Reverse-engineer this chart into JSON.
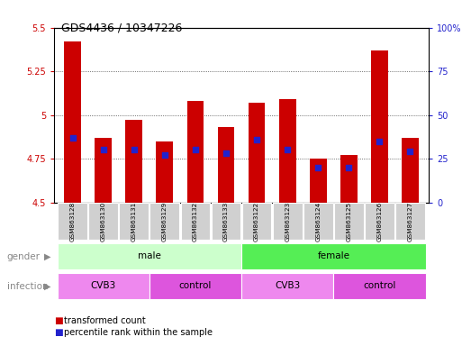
{
  "title": "GDS4436 / 10347226",
  "samples": [
    "GSM863128",
    "GSM863130",
    "GSM863131",
    "GSM863129",
    "GSM863132",
    "GSM863133",
    "GSM863122",
    "GSM863123",
    "GSM863124",
    "GSM863125",
    "GSM863126",
    "GSM863127"
  ],
  "red_values": [
    5.42,
    4.87,
    4.97,
    4.85,
    5.08,
    4.93,
    5.07,
    5.09,
    4.75,
    4.77,
    5.37,
    4.87
  ],
  "blue_values_pct": [
    37,
    30,
    30,
    27,
    30,
    28,
    36,
    30,
    20,
    20,
    35,
    29
  ],
  "ylim_left": [
    4.5,
    5.5
  ],
  "ylim_right": [
    0,
    100
  ],
  "yticks_left": [
    4.5,
    4.75,
    5.0,
    5.25,
    5.5
  ],
  "yticks_right": [
    0,
    25,
    50,
    75,
    100
  ],
  "ytick_labels_left": [
    "4.5",
    "4.75",
    "5",
    "5.25",
    "5.5"
  ],
  "ytick_labels_right": [
    "0",
    "25",
    "50",
    "75",
    "100%"
  ],
  "bar_color": "#cc0000",
  "dot_color": "#2222cc",
  "baseline": 4.5,
  "gender_groups": [
    {
      "label": "male",
      "start": 0,
      "end": 6,
      "color": "#ccffcc"
    },
    {
      "label": "female",
      "start": 6,
      "end": 12,
      "color": "#55ee55"
    }
  ],
  "infection_groups": [
    {
      "label": "CVB3",
      "start": 0,
      "end": 3,
      "color": "#ee88ee"
    },
    {
      "label": "control",
      "start": 3,
      "end": 6,
      "color": "#dd55dd"
    },
    {
      "label": "CVB3",
      "start": 6,
      "end": 9,
      "color": "#ee88ee"
    },
    {
      "label": "control",
      "start": 9,
      "end": 12,
      "color": "#dd55dd"
    }
  ],
  "legend_red": "transformed count",
  "legend_blue": "percentile rank within the sample",
  "grid_color": "black",
  "tick_color_left": "#cc0000",
  "tick_color_right": "#2222cc",
  "bg_color": "#ffffff",
  "bar_width": 0.55,
  "dot_size": 25
}
